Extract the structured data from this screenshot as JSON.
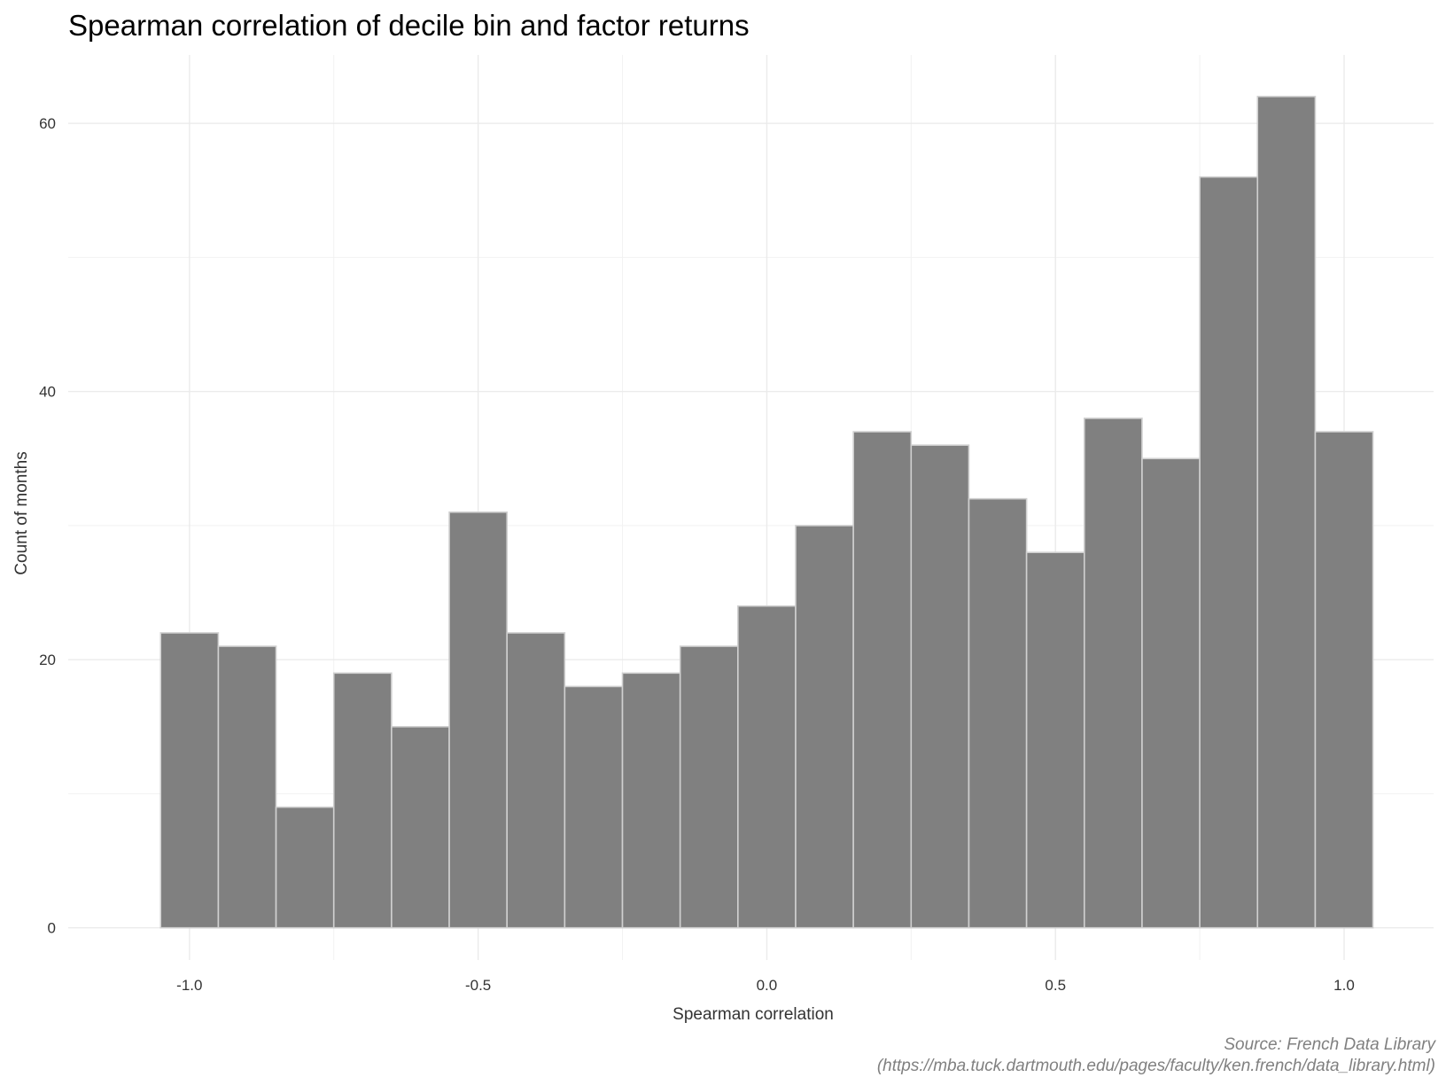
{
  "chart_data": {
    "type": "bar",
    "subtype": "histogram",
    "title": "Spearman correlation of decile bin and factor returns",
    "xlabel": "Spearman correlation",
    "ylabel": "Count of months",
    "caption_lines": [
      "Source: French Data Library",
      "(https://mba.tuck.dartmouth.edu/pages/faculty/ken.french/data_library.html)"
    ],
    "bin_width": 0.1,
    "bin_centers": [
      -1.0,
      -0.9,
      -0.8,
      -0.7,
      -0.6,
      -0.5,
      -0.4,
      -0.3,
      -0.2,
      -0.1,
      0.0,
      0.1,
      0.2,
      0.3,
      0.4,
      0.5,
      0.6,
      0.7,
      0.8,
      0.9,
      1.0
    ],
    "values": [
      22,
      21,
      9,
      19,
      15,
      31,
      22,
      18,
      19,
      21,
      24,
      30,
      37,
      36,
      32,
      28,
      38,
      35,
      56,
      62,
      37
    ],
    "xlim": [
      -1.21,
      1.155
    ],
    "ylim": [
      -2.4,
      65.1
    ],
    "x_ticks": [
      -1.0,
      -0.5,
      0.0,
      0.5,
      1.0
    ],
    "x_tick_labels": [
      "-1.0",
      "-0.5",
      "0.0",
      "0.5",
      "1.0"
    ],
    "y_ticks": [
      0,
      20,
      40,
      60
    ],
    "y_tick_labels": [
      "0",
      "20",
      "40",
      "60"
    ],
    "grid": true,
    "legend": "none",
    "colors": {
      "bar_fill": "#808080",
      "bar_outline": "#d0d0d0",
      "grid": "#ebebeb"
    }
  }
}
